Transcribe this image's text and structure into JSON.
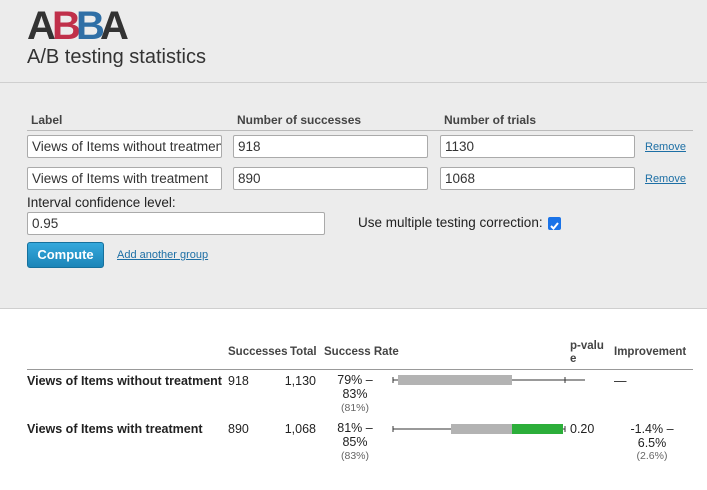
{
  "header": {
    "logo": [
      "A",
      "B",
      "B",
      "A"
    ],
    "title": "A/B testing statistics"
  },
  "form": {
    "columns": [
      "Label",
      "Number of successes",
      "Number of trials"
    ],
    "groups": [
      {
        "label": "Views of Items without treatment",
        "successes": "918",
        "trials": "1130",
        "remove": "Remove"
      },
      {
        "label": "Views of Items with treatment",
        "successes": "890",
        "trials": "1068",
        "remove": "Remove"
      }
    ],
    "confidence_label": "Interval confidence level:",
    "confidence": "0.95",
    "correction_label": "Use multiple testing correction:",
    "correction": true,
    "compute": "Compute",
    "add_group": "Add another group"
  },
  "results": {
    "columns": [
      "Successes",
      "Total",
      "Success Rate",
      "p-value",
      "Improvement"
    ],
    "rows": [
      {
        "label": "Views of Items without treatment",
        "successes": "918",
        "total": "1,130",
        "rate_low": "79% –",
        "rate_high": "83%",
        "rate": "(81%)",
        "improvement_low": "—"
      },
      {
        "label": "Views of Items with treatment",
        "successes": "890",
        "total": "1,068",
        "rate_low": "81% –",
        "rate_high": "85%",
        "rate": "(83%)",
        "p_value": "0.20",
        "improvement_low": "-1.4% –",
        "improvement_high": "6.5%",
        "improvement": "(2.6%)"
      }
    ]
  }
}
